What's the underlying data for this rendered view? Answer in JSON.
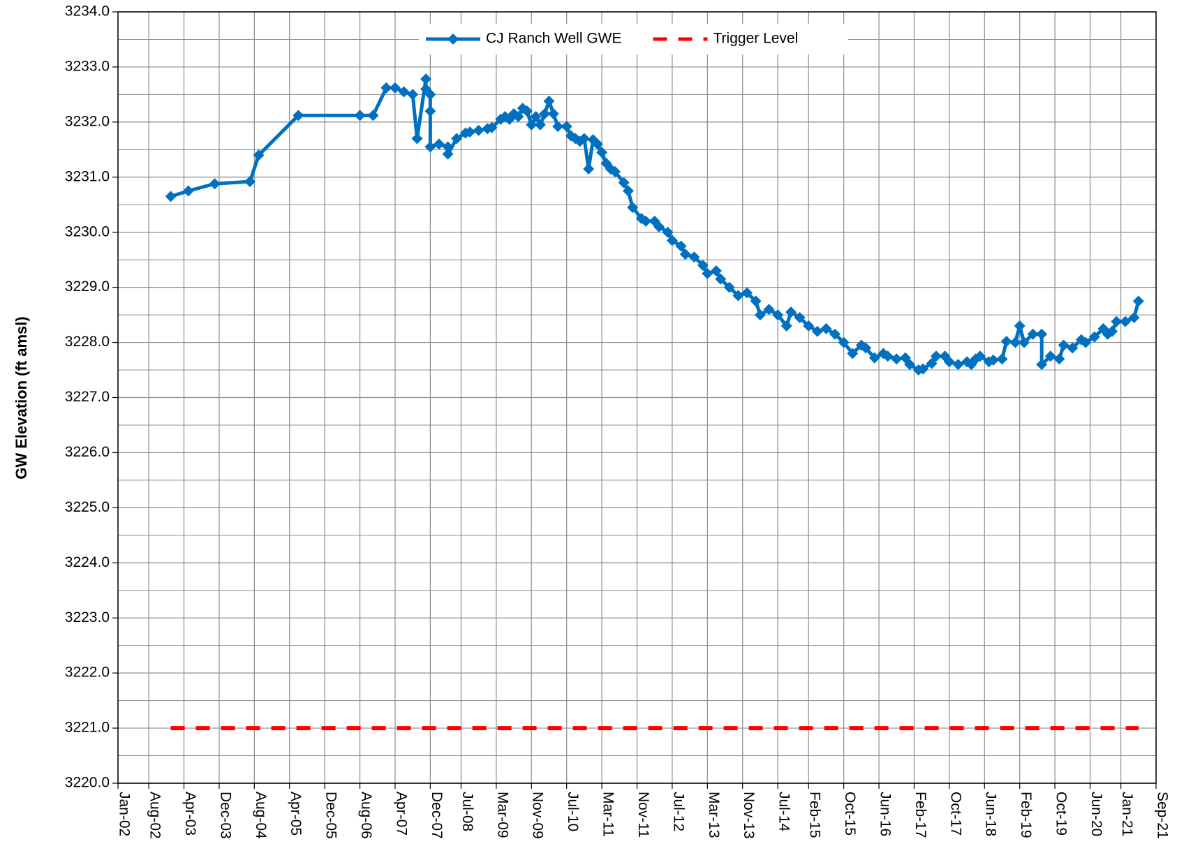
{
  "chart_data": {
    "type": "line",
    "y_label": "GW Elevation (ft amsl)",
    "xlim": [
      "2002-01",
      "2021-09"
    ],
    "xticks": [
      {
        "value": "2002-01",
        "label": "Jan-02"
      },
      {
        "value": "2002-08",
        "label": "Aug-02"
      },
      {
        "value": "2003-04",
        "label": "Apr-03"
      },
      {
        "value": "2003-12",
        "label": "Dec-03"
      },
      {
        "value": "2004-08",
        "label": "Aug-04"
      },
      {
        "value": "2005-04",
        "label": "Apr-05"
      },
      {
        "value": "2005-12",
        "label": "Dec-05"
      },
      {
        "value": "2006-08",
        "label": "Aug-06"
      },
      {
        "value": "2007-04",
        "label": "Apr-07"
      },
      {
        "value": "2007-12",
        "label": "Dec-07"
      },
      {
        "value": "2008-07",
        "label": "Jul-08"
      },
      {
        "value": "2009-03",
        "label": "Mar-09"
      },
      {
        "value": "2009-11",
        "label": "Nov-09"
      },
      {
        "value": "2010-07",
        "label": "Jul-10"
      },
      {
        "value": "2011-03",
        "label": "Mar-11"
      },
      {
        "value": "2011-11",
        "label": "Nov-11"
      },
      {
        "value": "2012-07",
        "label": "Jul-12"
      },
      {
        "value": "2013-03",
        "label": "Mar-13"
      },
      {
        "value": "2013-11",
        "label": "Nov-13"
      },
      {
        "value": "2014-07",
        "label": "Jul-14"
      },
      {
        "value": "2015-02",
        "label": "Feb-15"
      },
      {
        "value": "2015-10",
        "label": "Oct-15"
      },
      {
        "value": "2016-06",
        "label": "Jun-16"
      },
      {
        "value": "2017-02",
        "label": "Feb-17"
      },
      {
        "value": "2017-10",
        "label": "Oct-17"
      },
      {
        "value": "2018-06",
        "label": "Jun-18"
      },
      {
        "value": "2019-02",
        "label": "Feb-19"
      },
      {
        "value": "2019-10",
        "label": "Oct-19"
      },
      {
        "value": "2020-06",
        "label": "Jun-20"
      },
      {
        "value": "2021-01",
        "label": "Jan-21"
      },
      {
        "value": "2021-09",
        "label": "Sep-21"
      }
    ],
    "ylim": [
      3220,
      3234
    ],
    "yticks": [
      {
        "value": 3220,
        "label": "3220.0"
      },
      {
        "value": 3221,
        "label": "3221.0"
      },
      {
        "value": 3222,
        "label": "3222.0"
      },
      {
        "value": 3223,
        "label": "3223.0"
      },
      {
        "value": 3224,
        "label": "3224.0"
      },
      {
        "value": 3225,
        "label": "3225.0"
      },
      {
        "value": 3226,
        "label": "3226.0"
      },
      {
        "value": 3227,
        "label": "3227.0"
      },
      {
        "value": 3228,
        "label": "3228.0"
      },
      {
        "value": 3229,
        "label": "3229.0"
      },
      {
        "value": 3230,
        "label": "3230.0"
      },
      {
        "value": 3231,
        "label": "3231.0"
      },
      {
        "value": 3232,
        "label": "3232.0"
      },
      {
        "value": 3233,
        "label": "3233.0"
      },
      {
        "value": 3234,
        "label": "3234.0"
      }
    ],
    "grid": true,
    "minor_grid": true,
    "legend": "upper center",
    "series": [
      {
        "name": "CJ Ranch Well GWE",
        "color": "#0070c0",
        "marker": "diamond",
        "line_style": "solid",
        "x": [
          "2003-01",
          "2003-05",
          "2003-11",
          "2004-07",
          "2004-09",
          "2005-06",
          "2006-08",
          "2006-11",
          "2007-02",
          "2007-04",
          "2007-06",
          "2007-08",
          "2007-09",
          "2007-11",
          "2007-11",
          "2007-12",
          "2007-12",
          "2007-12",
          "2008-02",
          "2008-04",
          "2008-04",
          "2008-06",
          "2008-08",
          "2008-09",
          "2008-11",
          "2009-01",
          "2009-02",
          "2009-04",
          "2009-05",
          "2009-06",
          "2009-07",
          "2009-08",
          "2009-09",
          "2009-10",
          "2009-11",
          "2009-12",
          "2010-01",
          "2010-02",
          "2010-03",
          "2010-04",
          "2010-05",
          "2010-07",
          "2010-08",
          "2010-09",
          "2010-10",
          "2010-11",
          "2010-12",
          "2011-01",
          "2011-02",
          "2011-03",
          "2011-04",
          "2011-05",
          "2011-06",
          "2011-08",
          "2011-09",
          "2011-10",
          "2011-12",
          "2012-01",
          "2012-03",
          "2012-04",
          "2012-06",
          "2012-07",
          "2012-09",
          "2012-10",
          "2012-12",
          "2013-02",
          "2013-03",
          "2013-05",
          "2013-06",
          "2013-08",
          "2013-10",
          "2013-12",
          "2014-02",
          "2014-03",
          "2014-05",
          "2014-07",
          "2014-09",
          "2014-10",
          "2014-12",
          "2015-02",
          "2015-04",
          "2015-06",
          "2015-08",
          "2015-10",
          "2015-12",
          "2016-02",
          "2016-03",
          "2016-05",
          "2016-07",
          "2016-08",
          "2016-10",
          "2016-12",
          "2017-01",
          "2017-03",
          "2017-04",
          "2017-06",
          "2017-07",
          "2017-09",
          "2017-10",
          "2017-12",
          "2018-02",
          "2018-03",
          "2018-04",
          "2018-05",
          "2018-07",
          "2018-08",
          "2018-10",
          "2018-11",
          "2019-01",
          "2019-02",
          "2019-03",
          "2019-05",
          "2019-07",
          "2019-07",
          "2019-09",
          "2019-11",
          "2019-12",
          "2020-02",
          "2020-04",
          "2020-05",
          "2020-07",
          "2020-09",
          "2020-10",
          "2020-11",
          "2020-12",
          "2021-02",
          "2021-04",
          "2021-05"
        ],
        "values": [
          3230.65,
          3230.75,
          3230.88,
          3230.92,
          3231.4,
          3232.12,
          3232.12,
          3232.12,
          3232.62,
          3232.62,
          3232.55,
          3232.5,
          3231.7,
          3232.78,
          3232.6,
          3232.5,
          3232.2,
          3231.55,
          3231.6,
          3231.55,
          3231.42,
          3231.7,
          3231.8,
          3231.82,
          3231.85,
          3231.88,
          3231.9,
          3232.05,
          3232.1,
          3232.05,
          3232.15,
          3232.1,
          3232.25,
          3232.2,
          3231.95,
          3232.1,
          3231.95,
          3232.15,
          3232.38,
          3232.15,
          3231.92,
          3231.92,
          3231.75,
          3231.7,
          3231.65,
          3231.7,
          3231.15,
          3231.68,
          3231.6,
          3231.45,
          3231.25,
          3231.15,
          3231.1,
          3230.9,
          3230.75,
          3230.45,
          3230.25,
          3230.2,
          3230.2,
          3230.1,
          3230.0,
          3229.85,
          3229.75,
          3229.6,
          3229.55,
          3229.4,
          3229.25,
          3229.3,
          3229.15,
          3229.0,
          3228.85,
          3228.9,
          3228.75,
          3228.5,
          3228.6,
          3228.5,
          3228.3,
          3228.55,
          3228.45,
          3228.3,
          3228.2,
          3228.25,
          3228.15,
          3228.0,
          3227.8,
          3227.95,
          3227.9,
          3227.72,
          3227.8,
          3227.75,
          3227.7,
          3227.72,
          3227.6,
          3227.5,
          3227.52,
          3227.62,
          3227.75,
          3227.75,
          3227.65,
          3227.6,
          3227.65,
          3227.6,
          3227.7,
          3227.75,
          3227.65,
          3227.68,
          3227.7,
          3228.02,
          3228.0,
          3228.3,
          3228.0,
          3228.15,
          3228.15,
          3227.6,
          3227.75,
          3227.7,
          3227.95,
          3227.9,
          3228.05,
          3228.0,
          3228.1,
          3228.25,
          3228.15,
          3228.2,
          3228.38,
          3228.38,
          3228.45,
          3228.75
        ]
      },
      {
        "name": "Trigger Level",
        "color": "#ff0000",
        "marker": "none",
        "line_style": "dashed",
        "x": [
          "2003-01",
          "2021-05"
        ],
        "values": [
          3221,
          3221
        ]
      }
    ]
  }
}
